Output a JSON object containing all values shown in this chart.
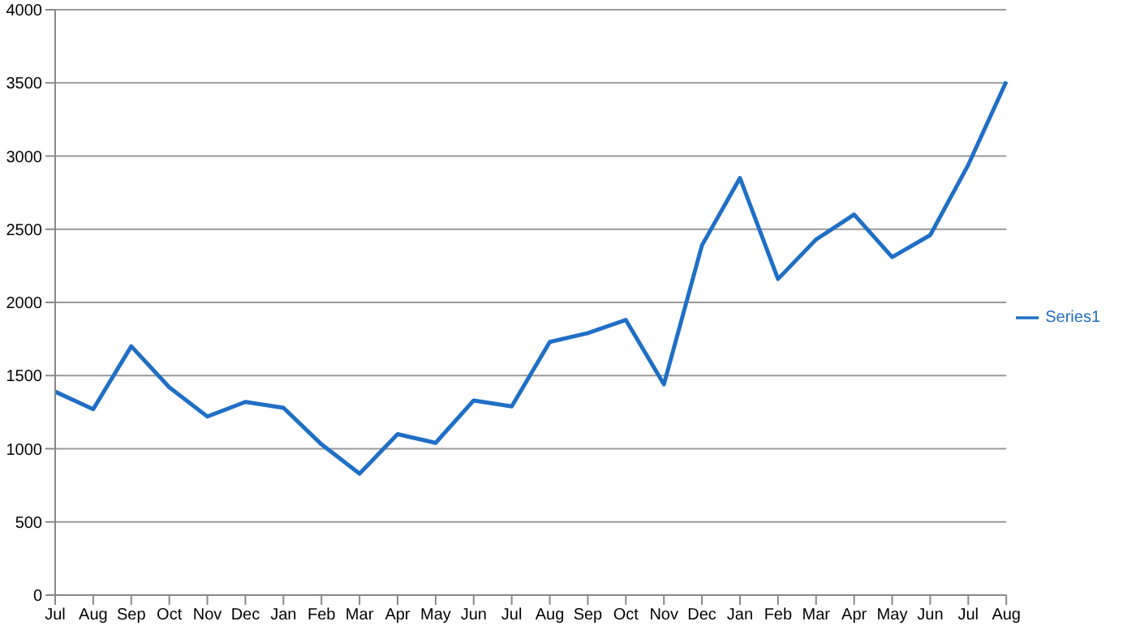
{
  "chart_data": {
    "type": "line",
    "categories": [
      "Jul",
      "Aug",
      "Sep",
      "Oct",
      "Nov",
      "Dec",
      "Jan",
      "Feb",
      "Mar",
      "Apr",
      "May",
      "Jun",
      "Jul",
      "Aug",
      "Sep",
      "Oct",
      "Nov",
      "Dec",
      "Jan",
      "Feb",
      "Mar",
      "Apr",
      "May",
      "Jun",
      "Jul",
      "Aug"
    ],
    "series": [
      {
        "name": "Series1",
        "color": "#1f6fc5",
        "values": [
          1390,
          1270,
          1700,
          1420,
          1220,
          1320,
          1280,
          1030,
          830,
          1100,
          1040,
          1330,
          1290,
          1730,
          1790,
          1880,
          1440,
          2390,
          2850,
          2160,
          2430,
          2600,
          2310,
          2460,
          2940,
          3510
        ]
      }
    ],
    "ylim": [
      0,
      4000
    ],
    "yticks": [
      0,
      500,
      1000,
      1500,
      2000,
      2500,
      3000,
      3500,
      4000
    ],
    "grid": "y",
    "legend": "right",
    "marker": "none",
    "line_style": "solid"
  }
}
